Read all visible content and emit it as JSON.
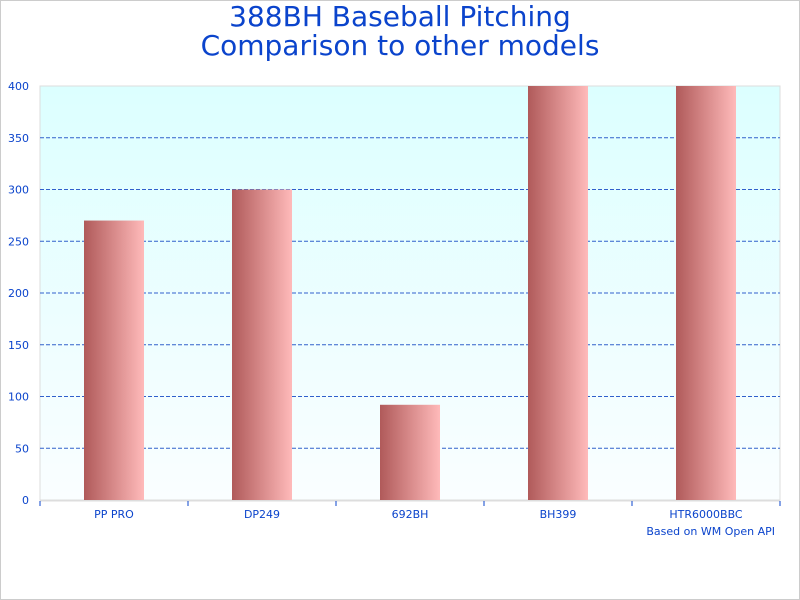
{
  "chart_data": {
    "type": "bar",
    "title_line1": "388BH Baseball Pitching",
    "title_line2": "Comparison to other models",
    "categories": [
      "PP PRO",
      "DP249",
      "692BH",
      "BH399",
      "HTR6000BBC"
    ],
    "values": [
      270,
      300,
      92,
      400,
      400
    ],
    "ylim": [
      0,
      400
    ],
    "yticks": [
      0,
      50,
      100,
      150,
      200,
      250,
      300,
      350,
      400
    ],
    "grid": true,
    "xlabel": "",
    "ylabel": "",
    "credit": "Based on WM Open API",
    "colors": {
      "text": "#0b44cc",
      "grid": "#3060cc",
      "bar_dark": "#b05a5a",
      "bar_light": "#ffbaba",
      "bg_top": "#dcffff",
      "bg_bottom": "#fafeff"
    }
  }
}
